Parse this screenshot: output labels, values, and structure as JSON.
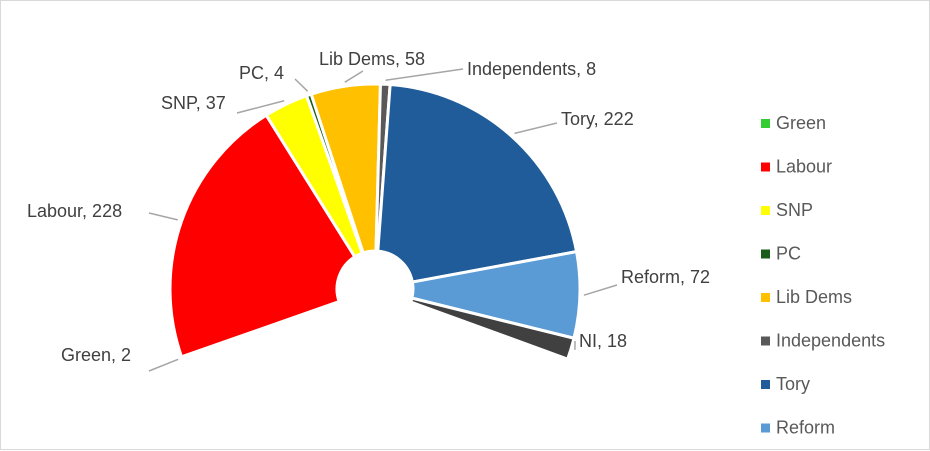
{
  "chart_data": {
    "type": "pie",
    "title": "",
    "categories": [
      "Green",
      "Labour",
      "SNP",
      "PC",
      "Lib Dems",
      "Independents",
      "Tory",
      "Reform",
      "NI"
    ],
    "values": [
      2,
      228,
      37,
      4,
      58,
      8,
      222,
      72,
      18
    ],
    "data_labels": [
      "Green, 2",
      "Labour, 228",
      "SNP, 37",
      "PC, 4",
      "Lib Dems, 58",
      "Independents, 8",
      "Tory, 222",
      "Reform, 72",
      "NI, 18"
    ],
    "colors": [
      "#33cc33",
      "#ff0000",
      "#ffff00",
      "#1a5c1a",
      "#ffc000",
      "#595959",
      "#1f5c99",
      "#5b9bd5",
      "#404040"
    ],
    "legend": {
      "position": "right",
      "entries": [
        "Green",
        "Labour",
        "SNP",
        "PC",
        "Lib Dems",
        "Independents",
        "Tory",
        "Reform"
      ]
    },
    "style": "doughnut-half"
  }
}
